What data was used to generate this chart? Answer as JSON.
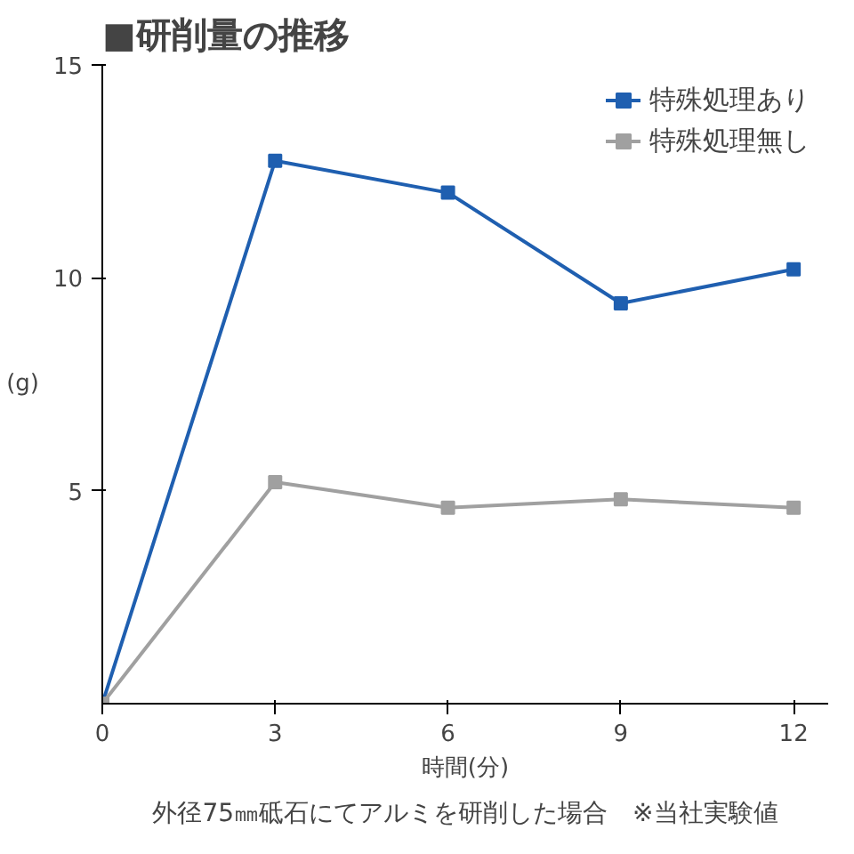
{
  "chart_data": {
    "type": "line",
    "title": "■研削量の推移",
    "xlabel": "時間(分)",
    "ylabel": "(g)",
    "x": [
      0,
      3,
      6,
      9,
      12
    ],
    "series": [
      {
        "name": "特殊処理あり",
        "color": "#1f5fb0",
        "values": [
          0,
          12.75,
          12.0,
          9.4,
          10.2
        ]
      },
      {
        "name": "特殊処理無し",
        "color": "#a0a0a0",
        "values": [
          0,
          5.2,
          4.6,
          4.8,
          4.6
        ]
      }
    ],
    "xlim": [
      0,
      12.6
    ],
    "xticks": [
      0,
      3,
      6,
      9,
      12
    ],
    "ylim": [
      0,
      15
    ],
    "yticks": [
      5,
      10,
      15
    ],
    "grid": false,
    "legend": "top right",
    "marker": "square",
    "line_style": "solid",
    "annotations": [
      "外径75㎜砥石にてアルミを研削した場合　※当社実験値"
    ]
  }
}
